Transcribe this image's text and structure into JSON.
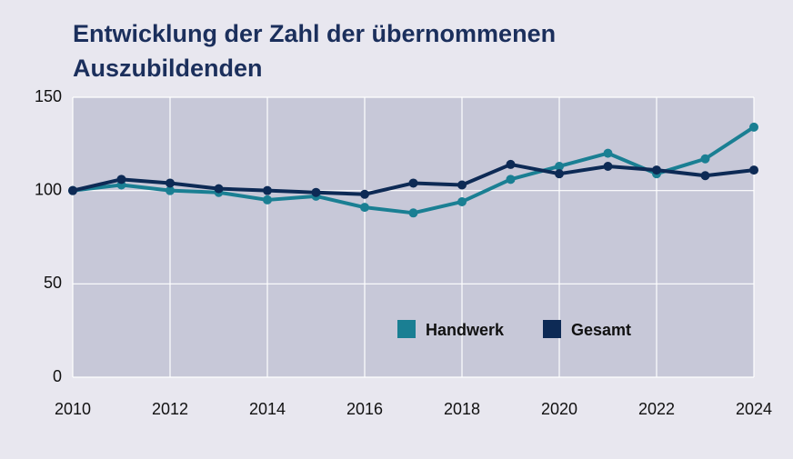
{
  "chart_data": {
    "type": "line",
    "title": "Entwicklung der Zahl der übernommenen Auszubildenden",
    "x": [
      2010,
      2011,
      2012,
      2013,
      2014,
      2015,
      2016,
      2017,
      2018,
      2019,
      2020,
      2021,
      2022,
      2023,
      2024
    ],
    "series": [
      {
        "name": "Handwerk",
        "color": "#1a7f93",
        "values": [
          100,
          103,
          100,
          99,
          95,
          97,
          91,
          88,
          94,
          106,
          113,
          120,
          109,
          117,
          134
        ]
      },
      {
        "name": "Gesamt",
        "color": "#0d2a55",
        "values": [
          100,
          106,
          104,
          101,
          100,
          99,
          98,
          104,
          103,
          114,
          109,
          113,
          111,
          108,
          111
        ]
      }
    ],
    "xlim": [
      2010,
      2024
    ],
    "xticks": [
      2010,
      2012,
      2014,
      2016,
      2018,
      2020,
      2022,
      2024
    ],
    "ylim": [
      0,
      150
    ],
    "yticks": [
      0,
      50,
      100,
      150
    ],
    "grid": true,
    "legend": "lower right"
  }
}
